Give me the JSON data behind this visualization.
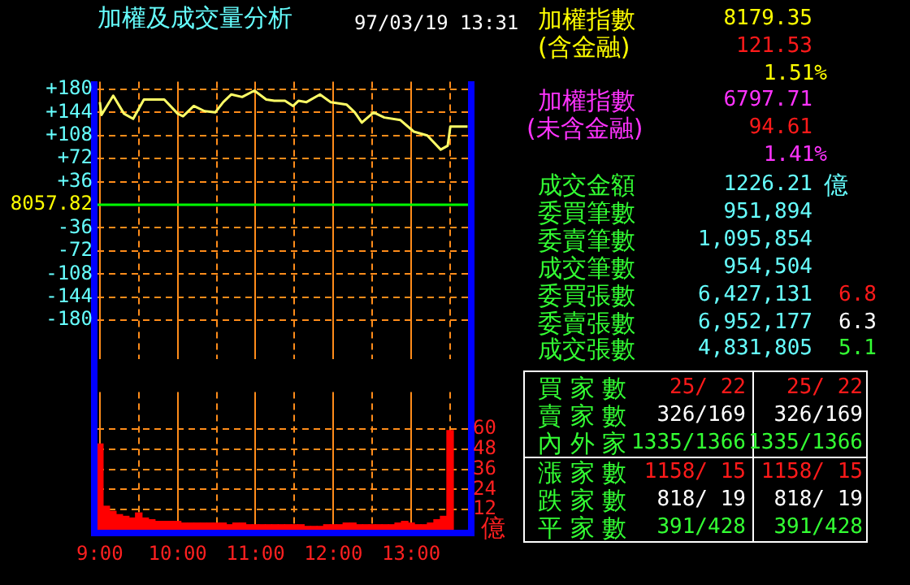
{
  "chart_data": [
    {
      "type": "line",
      "title": "加權及成交量分析",
      "subtitle": "97/03/19 13:31",
      "x": [
        9.0,
        9.021,
        9.172,
        9.31,
        9.428,
        9.566,
        9.724,
        9.828,
        10.0,
        10.069,
        10.207,
        10.345,
        10.483,
        10.586,
        10.69,
        10.828,
        10.986,
        11.138,
        11.241,
        11.379,
        11.483,
        11.552,
        11.655,
        11.828,
        11.966,
        12.172,
        12.276,
        12.366,
        12.517,
        12.655,
        12.862,
        13.034,
        13.207,
        13.379,
        13.469,
        13.503,
        13.724
      ],
      "series": [
        {
          "color": "#ffff66",
          "values": [
            160,
            140,
            170,
            142,
            134,
            164,
            164,
            164,
            142,
            138,
            154,
            146,
            144,
            160,
            172,
            168,
            178,
            164,
            162,
            162,
            154,
            162,
            160,
            172,
            160,
            156,
            144,
            128,
            144,
            136,
            132,
            114,
            108,
            86,
            92,
            122,
            122
          ]
        }
      ],
      "xlim": [
        8.97,
        13.73
      ],
      "xticks": [
        9,
        9.5,
        10,
        10.5,
        11,
        11.5,
        12,
        12.5,
        13,
        13.5
      ],
      "ylim": [
        -240,
        192
      ],
      "yticks": [
        {
          "value": 180,
          "label": "+180"
        },
        {
          "value": 144,
          "label": "+144"
        },
        {
          "value": 108,
          "label": "+108"
        },
        {
          "value": 72,
          "label": "+72"
        },
        {
          "value": 36,
          "label": "+36"
        },
        -36,
        -72,
        -108,
        -144,
        -180
      ],
      "ref_lines": [
        {
          "axis": "y",
          "value": 0,
          "color": "#00ff00"
        }
      ],
      "annotations": [
        "8057.82"
      ],
      "grid": true,
      "marker": "none",
      "line_style": "solid",
      "tick_labels": "y"
    },
    {
      "type": "bar",
      "ylabel": "億",
      "x": [
        9.0,
        9.083,
        9.167,
        9.25,
        9.333,
        9.417,
        9.5,
        9.583,
        9.667,
        9.75,
        9.833,
        9.917,
        10.0,
        10.083,
        10.167,
        10.25,
        10.333,
        10.417,
        10.5,
        10.583,
        10.667,
        10.75,
        10.833,
        10.917,
        11.0,
        11.083,
        11.167,
        11.25,
        11.333,
        11.417,
        11.5,
        11.583,
        11.667,
        11.75,
        11.833,
        11.917,
        12.0,
        12.083,
        12.167,
        12.25,
        12.333,
        12.417,
        12.5,
        12.583,
        12.667,
        12.75,
        12.833,
        12.917,
        13.0,
        13.083,
        13.167,
        13.25,
        13.333,
        13.417,
        13.5
      ],
      "values": [
        51,
        14,
        11,
        9,
        8,
        7,
        10,
        7,
        6,
        5,
        5,
        5,
        5,
        4,
        4,
        4,
        4,
        4,
        4,
        4,
        3,
        4,
        4,
        3,
        3,
        3,
        3,
        3,
        3,
        3,
        3,
        3,
        2,
        2,
        2,
        3,
        3,
        3,
        4,
        4,
        3,
        3,
        3,
        3,
        3,
        3,
        4,
        5,
        4,
        3,
        3,
        4,
        6,
        8,
        59
      ],
      "color": "#ff0000",
      "xlim": [
        8.97,
        13.73
      ],
      "xticks": [
        {
          "value": 9,
          "label": "9:00"
        },
        {
          "value": 9.5,
          "label": null
        },
        {
          "value": 10,
          "label": "10:00"
        },
        {
          "value": 10.5,
          "label": null
        },
        {
          "value": 11,
          "label": "11:00"
        },
        {
          "value": 11.5,
          "label": null
        },
        {
          "value": 12,
          "label": "12:00"
        },
        {
          "value": 12.5,
          "label": null
        },
        {
          "value": 13,
          "label": "13:00"
        },
        {
          "value": 13.5,
          "label": null
        }
      ],
      "ylim": [
        0,
        82
      ],
      "yticks": [
        12,
        24,
        36,
        48,
        60
      ],
      "grid": true
    },
    {
      "type": "other",
      "annotations": [
        "加權指數",
        "8179.35",
        "(含金融)",
        "121.53",
        "1.51%",
        "加權指數",
        "6797.71",
        "(未含金融)",
        "94.61",
        "1.41%",
        "成交金額",
        "1226.21",
        "億",
        "委買筆數",
        "951,894",
        "委賣筆數",
        "1,095,854",
        "成交筆數",
        "954,504",
        "委買張數",
        "6,427,131",
        "6.8",
        "委賣張數",
        "6,952,177",
        "6.3",
        "成交張數",
        "4,831,805",
        "5.1",
        "買 家 數",
        "25/ 22",
        "25/ 22",
        "賣 家 數",
        "326/169",
        "326/169",
        "內 外 家",
        "1335/1366",
        "1335/1366",
        "漲 家 數",
        "1158/ 15",
        "1158/ 15",
        "跌 家 數",
        "818/ 19",
        "818/ 19",
        "平 家 數",
        "391/428",
        "391/428"
      ]
    }
  ]
}
